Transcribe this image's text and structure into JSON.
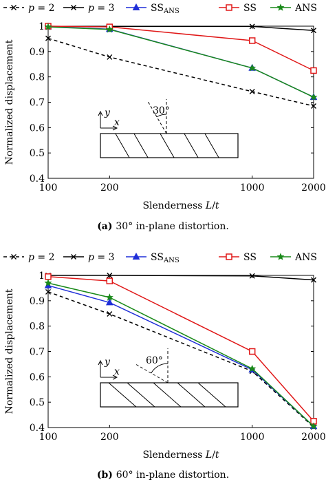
{
  "chart_data": [
    {
      "type": "line",
      "caption_label": "(a)",
      "caption_text": "30° in-plane distortion.",
      "xlabel": "Slenderness L/t",
      "ylabel": "Normalized displacement",
      "x": [
        100,
        200,
        1000,
        2000
      ],
      "xtick_labels": [
        "100",
        "200",
        "1000",
        "2000"
      ],
      "xscale": "log",
      "ylim": [
        0.4,
        1.0
      ],
      "yticks": [
        "0.4",
        "0.5",
        "0.6",
        "0.7",
        "0.8",
        "0.9",
        "1"
      ],
      "legend_position": "top",
      "inset": {
        "angle_label": "30°",
        "axis_y": "y",
        "axis_x": "x"
      },
      "series": [
        {
          "name": "p = 2",
          "color": "#000000",
          "style": "dashed",
          "marker": "x",
          "values": [
            0.952,
            0.878,
            0.742,
            0.685
          ]
        },
        {
          "name": "p = 3",
          "color": "#000000",
          "style": "solid",
          "marker": "x",
          "values": [
            0.999,
            0.999,
            0.999,
            0.983
          ]
        },
        {
          "name": "SS_ANS",
          "color": "#1f2fd8",
          "style": "solid",
          "marker": "triangle",
          "values": [
            0.998,
            0.988,
            0.835,
            0.72
          ]
        },
        {
          "name": "SS",
          "color": "#e01818",
          "style": "solid",
          "marker": "square",
          "values": [
            1.0,
            0.997,
            0.943,
            0.825
          ]
        },
        {
          "name": "ANS",
          "color": "#1a8a1a",
          "style": "solid",
          "marker": "star",
          "values": [
            0.997,
            0.987,
            0.835,
            0.72
          ]
        }
      ]
    },
    {
      "type": "line",
      "caption_label": "(b)",
      "caption_text": "60° in-plane distortion.",
      "xlabel": "Slenderness L/t",
      "ylabel": "Normalized displacement",
      "x": [
        100,
        200,
        1000,
        2000
      ],
      "xtick_labels": [
        "100",
        "200",
        "1000",
        "2000"
      ],
      "xscale": "log",
      "ylim": [
        0.4,
        1.0
      ],
      "yticks": [
        "0.4",
        "0.5",
        "0.6",
        "0.7",
        "0.8",
        "0.9",
        "1"
      ],
      "legend_position": "top",
      "inset": {
        "angle_label": "60°",
        "axis_y": "y",
        "axis_x": "x"
      },
      "series": [
        {
          "name": "p = 2",
          "color": "#000000",
          "style": "dashed",
          "marker": "x",
          "values": [
            0.935,
            0.848,
            0.622,
            0.402
          ]
        },
        {
          "name": "p = 3",
          "color": "#000000",
          "style": "solid",
          "marker": "x",
          "values": [
            1.0,
            1.0,
            0.998,
            0.982
          ]
        },
        {
          "name": "SS_ANS",
          "color": "#1f2fd8",
          "style": "solid",
          "marker": "triangle",
          "values": [
            0.96,
            0.893,
            0.628,
            0.405
          ]
        },
        {
          "name": "SS",
          "color": "#e01818",
          "style": "solid",
          "marker": "square",
          "values": [
            0.995,
            0.978,
            0.7,
            0.425
          ]
        },
        {
          "name": "ANS",
          "color": "#1a8a1a",
          "style": "solid",
          "marker": "star",
          "values": [
            0.97,
            0.913,
            0.632,
            0.405
          ]
        }
      ]
    }
  ]
}
